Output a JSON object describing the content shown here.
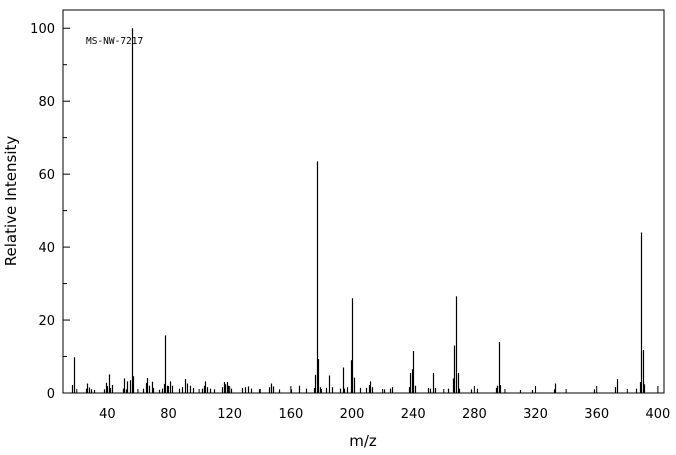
{
  "chart_data": {
    "type": "bar",
    "annotation": "MS-NW-7217",
    "xlabel": "m/z",
    "ylabel": "Relative Intensity",
    "xlim": [
      11,
      404
    ],
    "ylim": [
      0,
      105
    ],
    "x_ticks": [
      40,
      80,
      120,
      160,
      200,
      240,
      280,
      320,
      360,
      400
    ],
    "y_ticks": [
      0,
      20,
      40,
      60,
      80,
      100
    ],
    "grid": false,
    "legend": "none",
    "colors": {
      "line": "#000000",
      "background": "#ffffff"
    },
    "peaks": [
      {
        "mz": 17,
        "intensity": 2.2
      },
      {
        "mz": 18,
        "intensity": 9.8
      },
      {
        "mz": 26,
        "intensity": 1.2
      },
      {
        "mz": 27,
        "intensity": 2.6
      },
      {
        "mz": 28,
        "intensity": 1.5
      },
      {
        "mz": 29,
        "intensity": 1.0
      },
      {
        "mz": 31,
        "intensity": 0.8
      },
      {
        "mz": 38,
        "intensity": 1.0
      },
      {
        "mz": 39,
        "intensity": 2.8
      },
      {
        "mz": 40,
        "intensity": 1.6
      },
      {
        "mz": 41,
        "intensity": 5.1
      },
      {
        "mz": 42,
        "intensity": 1.4
      },
      {
        "mz": 43,
        "intensity": 2.2
      },
      {
        "mz": 50,
        "intensity": 1.2
      },
      {
        "mz": 51,
        "intensity": 4.0
      },
      {
        "mz": 52,
        "intensity": 1.0
      },
      {
        "mz": 53,
        "intensity": 3.2
      },
      {
        "mz": 55,
        "intensity": 3.5
      },
      {
        "mz": 56,
        "intensity": 100.0
      },
      {
        "mz": 57,
        "intensity": 4.6
      },
      {
        "mz": 63,
        "intensity": 1.2
      },
      {
        "mz": 65,
        "intensity": 2.8
      },
      {
        "mz": 66,
        "intensity": 4.1
      },
      {
        "mz": 67,
        "intensity": 2.0
      },
      {
        "mz": 69,
        "intensity": 3.1
      },
      {
        "mz": 70,
        "intensity": 1.4
      },
      {
        "mz": 74,
        "intensity": 0.9
      },
      {
        "mz": 76,
        "intensity": 1.2
      },
      {
        "mz": 77,
        "intensity": 2.5
      },
      {
        "mz": 78,
        "intensity": 15.8
      },
      {
        "mz": 79,
        "intensity": 2.0
      },
      {
        "mz": 81,
        "intensity": 3.2
      },
      {
        "mz": 82,
        "intensity": 2.0
      },
      {
        "mz": 87,
        "intensity": 1.2
      },
      {
        "mz": 89,
        "intensity": 1.6
      },
      {
        "mz": 91,
        "intensity": 3.8
      },
      {
        "mz": 92,
        "intensity": 2.6
      },
      {
        "mz": 94,
        "intensity": 2.0
      },
      {
        "mz": 96,
        "intensity": 1.4
      },
      {
        "mz": 102,
        "intensity": 1.2
      },
      {
        "mz": 103,
        "intensity": 2.0
      },
      {
        "mz": 104,
        "intensity": 3.2
      },
      {
        "mz": 105,
        "intensity": 1.6
      },
      {
        "mz": 107,
        "intensity": 1.2
      },
      {
        "mz": 110,
        "intensity": 1.0
      },
      {
        "mz": 115,
        "intensity": 1.6
      },
      {
        "mz": 116,
        "intensity": 3.0
      },
      {
        "mz": 117,
        "intensity": 2.4
      },
      {
        "mz": 118,
        "intensity": 3.0
      },
      {
        "mz": 119,
        "intensity": 2.0
      },
      {
        "mz": 121,
        "intensity": 1.2
      },
      {
        "mz": 128,
        "intensity": 1.4
      },
      {
        "mz": 130,
        "intensity": 1.6
      },
      {
        "mz": 132,
        "intensity": 1.8
      },
      {
        "mz": 134,
        "intensity": 1.2
      },
      {
        "mz": 139,
        "intensity": 1.0
      },
      {
        "mz": 146,
        "intensity": 1.6
      },
      {
        "mz": 147,
        "intensity": 2.6
      },
      {
        "mz": 148,
        "intensity": 1.8
      },
      {
        "mz": 152,
        "intensity": 1.0
      },
      {
        "mz": 160,
        "intensity": 1.0
      },
      {
        "mz": 165,
        "intensity": 2.0
      },
      {
        "mz": 170,
        "intensity": 1.2
      },
      {
        "mz": 175,
        "intensity": 1.4
      },
      {
        "mz": 176,
        "intensity": 5.0
      },
      {
        "mz": 177,
        "intensity": 63.5
      },
      {
        "mz": 178,
        "intensity": 9.3
      },
      {
        "mz": 179,
        "intensity": 1.6
      },
      {
        "mz": 183,
        "intensity": 1.4
      },
      {
        "mz": 185,
        "intensity": 4.8
      },
      {
        "mz": 187,
        "intensity": 1.6
      },
      {
        "mz": 192,
        "intensity": 1.2
      },
      {
        "mz": 194,
        "intensity": 7.0
      },
      {
        "mz": 195,
        "intensity": 1.2
      },
      {
        "mz": 197,
        "intensity": 1.6
      },
      {
        "mz": 199,
        "intensity": 9.0
      },
      {
        "mz": 200,
        "intensity": 26.0
      },
      {
        "mz": 201,
        "intensity": 4.2
      },
      {
        "mz": 205,
        "intensity": 1.4
      },
      {
        "mz": 209,
        "intensity": 1.4
      },
      {
        "mz": 211,
        "intensity": 2.2
      },
      {
        "mz": 212,
        "intensity": 3.2
      },
      {
        "mz": 213,
        "intensity": 1.6
      },
      {
        "mz": 221,
        "intensity": 1.0
      },
      {
        "mz": 225,
        "intensity": 1.2
      },
      {
        "mz": 226,
        "intensity": 1.6
      },
      {
        "mz": 237,
        "intensity": 1.6
      },
      {
        "mz": 238,
        "intensity": 5.5
      },
      {
        "mz": 239,
        "intensity": 6.5
      },
      {
        "mz": 240,
        "intensity": 11.5
      },
      {
        "mz": 241,
        "intensity": 2.0
      },
      {
        "mz": 250,
        "intensity": 1.4
      },
      {
        "mz": 251,
        "intensity": 1.2
      },
      {
        "mz": 253,
        "intensity": 5.5
      },
      {
        "mz": 254,
        "intensity": 1.4
      },
      {
        "mz": 263,
        "intensity": 1.2
      },
      {
        "mz": 266,
        "intensity": 4.0
      },
      {
        "mz": 267,
        "intensity": 13.0
      },
      {
        "mz": 268,
        "intensity": 26.5
      },
      {
        "mz": 269,
        "intensity": 5.5
      },
      {
        "mz": 270,
        "intensity": 1.2
      },
      {
        "mz": 278,
        "intensity": 1.0
      },
      {
        "mz": 282,
        "intensity": 1.2
      },
      {
        "mz": 294,
        "intensity": 1.4
      },
      {
        "mz": 295,
        "intensity": 2.0
      },
      {
        "mz": 296,
        "intensity": 14.0
      },
      {
        "mz": 297,
        "intensity": 2.2
      },
      {
        "mz": 310,
        "intensity": 0.8
      },
      {
        "mz": 318,
        "intensity": 0.8
      },
      {
        "mz": 332,
        "intensity": 1.0
      },
      {
        "mz": 333,
        "intensity": 2.6
      },
      {
        "mz": 358,
        "intensity": 1.0
      },
      {
        "mz": 372,
        "intensity": 1.6
      },
      {
        "mz": 373,
        "intensity": 3.8
      },
      {
        "mz": 386,
        "intensity": 1.2
      },
      {
        "mz": 388,
        "intensity": 3.0
      },
      {
        "mz": 389,
        "intensity": 44.0
      },
      {
        "mz": 390,
        "intensity": 11.8
      },
      {
        "mz": 391,
        "intensity": 2.4
      }
    ]
  }
}
